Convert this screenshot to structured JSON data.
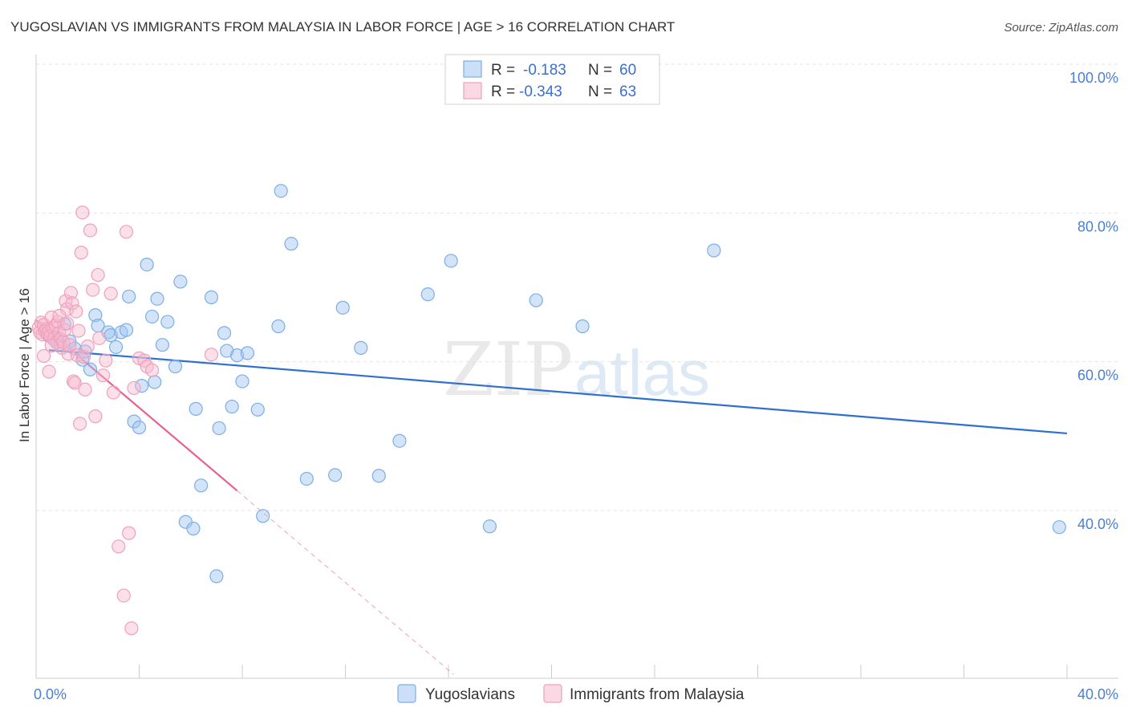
{
  "chart_data": {
    "type": "scatter",
    "title": "YUGOSLAVIAN VS IMMIGRANTS FROM MALAYSIA IN LABOR FORCE | AGE > 16 CORRELATION CHART",
    "source": "Source: ZipAtlas.com",
    "xlabel": "",
    "ylabel": "In Labor Force | Age > 16",
    "xlim": [
      0,
      40
    ],
    "ylim": [
      20,
      102
    ],
    "x_ticks": [
      {
        "value": 0,
        "label": "0.0%"
      },
      {
        "value": 40,
        "label": "40.0%"
      }
    ],
    "y_ticks": [
      {
        "value": 100,
        "label": "100.0%"
      },
      {
        "value": 80,
        "label": "80.0%"
      },
      {
        "value": 60,
        "label": "60.0%"
      },
      {
        "value": 40,
        "label": "40.0%"
      }
    ],
    "grid": true,
    "watermark": {
      "part1": "ZIP",
      "part2": "atlas"
    },
    "legend": {
      "rows": [
        {
          "r_label": "R =",
          "r_value": "-0.183",
          "n_label": "N =",
          "n_value": "60"
        },
        {
          "r_label": "R =",
          "r_value": "-0.343",
          "n_label": "N =",
          "n_value": "63"
        }
      ]
    },
    "series": [
      {
        "name": "Yugoslavians",
        "color": "#7baee8",
        "fill": "rgba(160,196,240,0.45)",
        "line_color": "#2f6fcf",
        "trend": {
          "x0": 0.5,
          "y0": 63.4,
          "x1": 40.0,
          "y1": 52.2
        },
        "points": [
          [
            0.5,
            65.3
          ],
          [
            0.7,
            64.8
          ],
          [
            0.8,
            65.1
          ],
          [
            0.9,
            64.2
          ],
          [
            1.1,
            66.9
          ],
          [
            1.3,
            64.6
          ],
          [
            1.5,
            63.6
          ],
          [
            1.8,
            62.1
          ],
          [
            2.3,
            68.1
          ],
          [
            2.4,
            66.7
          ],
          [
            2.8,
            65.8
          ],
          [
            2.9,
            65.4
          ],
          [
            3.1,
            63.8
          ],
          [
            3.3,
            65.8
          ],
          [
            3.5,
            66.1
          ],
          [
            3.6,
            70.6
          ],
          [
            3.8,
            53.8
          ],
          [
            4.0,
            53.0
          ],
          [
            4.1,
            58.6
          ],
          [
            4.3,
            74.9
          ],
          [
            4.5,
            67.9
          ],
          [
            4.7,
            70.3
          ],
          [
            4.9,
            64.1
          ],
          [
            5.1,
            67.2
          ],
          [
            5.4,
            61.2
          ],
          [
            5.6,
            72.6
          ],
          [
            5.8,
            40.3
          ],
          [
            6.1,
            39.4
          ],
          [
            6.2,
            55.5
          ],
          [
            6.4,
            45.2
          ],
          [
            6.8,
            70.5
          ],
          [
            7.0,
            33.0
          ],
          [
            7.1,
            52.9
          ],
          [
            7.3,
            65.7
          ],
          [
            7.4,
            63.3
          ],
          [
            7.6,
            55.8
          ],
          [
            7.8,
            62.7
          ],
          [
            8.0,
            59.2
          ],
          [
            8.2,
            63.0
          ],
          [
            8.6,
            55.4
          ],
          [
            8.8,
            41.1
          ],
          [
            9.4,
            66.6
          ],
          [
            9.5,
            84.8
          ],
          [
            9.9,
            77.7
          ],
          [
            10.5,
            46.1
          ],
          [
            11.6,
            46.6
          ],
          [
            11.9,
            69.1
          ],
          [
            12.6,
            63.7
          ],
          [
            13.3,
            46.5
          ],
          [
            14.1,
            51.2
          ],
          [
            15.2,
            70.9
          ],
          [
            16.1,
            75.4
          ],
          [
            17.6,
            39.7
          ],
          [
            19.4,
            70.1
          ],
          [
            21.2,
            66.6
          ],
          [
            26.3,
            76.8
          ],
          [
            39.7,
            39.6
          ],
          [
            1.9,
            63.2
          ],
          [
            2.1,
            60.8
          ],
          [
            4.6,
            59.1
          ]
        ]
      },
      {
        "name": "Immigrants from Malaysia",
        "color": "#f0a0bb",
        "fill": "rgba(246,186,206,0.45)",
        "line_color": "#e8608f",
        "trend": {
          "x0": 0.0,
          "y0": 67.4,
          "x1": 7.8,
          "y1": 44.5
        },
        "trend_dash": {
          "x0": 7.8,
          "y0": 44.5,
          "x1": 16.2,
          "y1": 19.8
        },
        "points": [
          [
            0.1,
            66.4
          ],
          [
            0.15,
            65.8
          ],
          [
            0.2,
            67.1
          ],
          [
            0.25,
            65.5
          ],
          [
            0.3,
            66.8
          ],
          [
            0.35,
            65.9
          ],
          [
            0.4,
            66.2
          ],
          [
            0.45,
            65.6
          ],
          [
            0.5,
            66.0
          ],
          [
            0.55,
            65.3
          ],
          [
            0.6,
            67.8
          ],
          [
            0.65,
            66.4
          ],
          [
            0.7,
            65.0
          ],
          [
            0.75,
            66.7
          ],
          [
            0.8,
            64.4
          ],
          [
            0.85,
            67.2
          ],
          [
            0.9,
            65.7
          ],
          [
            0.95,
            64.9
          ],
          [
            1.0,
            63.7
          ],
          [
            1.05,
            64.5
          ],
          [
            1.1,
            66.1
          ],
          [
            1.15,
            70.0
          ],
          [
            1.2,
            68.9
          ],
          [
            1.25,
            62.9
          ],
          [
            1.3,
            64.1
          ],
          [
            1.35,
            71.1
          ],
          [
            1.4,
            69.7
          ],
          [
            1.45,
            59.2
          ],
          [
            1.5,
            59.0
          ],
          [
            1.55,
            68.6
          ],
          [
            1.6,
            62.7
          ],
          [
            1.65,
            66.0
          ],
          [
            1.7,
            53.5
          ],
          [
            1.75,
            76.5
          ],
          [
            1.8,
            81.9
          ],
          [
            1.85,
            62.5
          ],
          [
            1.9,
            58.1
          ],
          [
            2.0,
            63.9
          ],
          [
            2.1,
            79.5
          ],
          [
            2.2,
            71.5
          ],
          [
            2.3,
            54.5
          ],
          [
            2.4,
            73.5
          ],
          [
            2.45,
            65.0
          ],
          [
            2.6,
            60.0
          ],
          [
            2.7,
            62.0
          ],
          [
            2.9,
            71.0
          ],
          [
            3.0,
            57.7
          ],
          [
            3.2,
            37.0
          ],
          [
            3.4,
            30.4
          ],
          [
            3.5,
            79.3
          ],
          [
            3.6,
            38.8
          ],
          [
            3.7,
            26.0
          ],
          [
            3.8,
            58.3
          ],
          [
            4.0,
            62.3
          ],
          [
            4.2,
            62.0
          ],
          [
            4.3,
            61.2
          ],
          [
            4.5,
            60.7
          ],
          [
            6.8,
            62.8
          ],
          [
            0.3,
            62.6
          ],
          [
            0.5,
            60.5
          ],
          [
            0.9,
            68.0
          ],
          [
            1.2,
            67.0
          ],
          [
            0.6,
            64.0
          ]
        ]
      }
    ]
  }
}
